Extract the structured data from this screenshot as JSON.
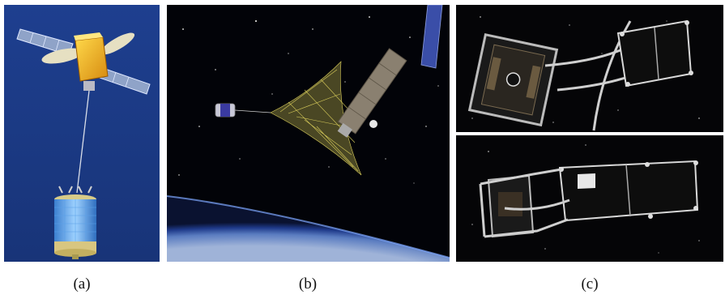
{
  "figure": {
    "captions": {
      "a": "(a)",
      "b": "(b)",
      "c": "(c)"
    },
    "panels": [
      {
        "id": "a",
        "subject": "tethered-satellite-illustration",
        "background": "#1b3d8c"
      },
      {
        "id": "b",
        "subject": "net-capture-of-debris-over-earth",
        "background": "#020308"
      },
      {
        "id": "c-top",
        "subject": "cubesat-capture-frame-approach",
        "background": "#050507"
      },
      {
        "id": "c-bottom",
        "subject": "cubesat-capture-frame-closed",
        "background": "#050507"
      }
    ]
  }
}
